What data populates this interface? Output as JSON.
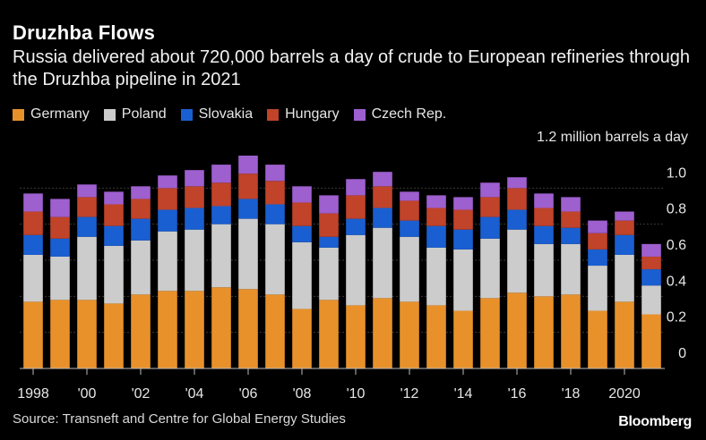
{
  "header": {
    "title": "Druzhba Flows",
    "subtitle": "Russia delivered about 720,000 barrels a day of crude to European refineries through the Druzhba pipeline in 2021"
  },
  "legend": [
    {
      "label": "Germany",
      "color": "#e8912b"
    },
    {
      "label": "Poland",
      "color": "#cccccc"
    },
    {
      "label": "Slovakia",
      "color": "#1a5fd1"
    },
    {
      "label": "Hungary",
      "color": "#c0432a"
    },
    {
      "label": "Czech Rep.",
      "color": "#9e5fcf"
    }
  ],
  "footer": {
    "source": "Source: Transneft and Centre for Global Energy Studies",
    "brand": "Bloomberg"
  },
  "chart_data": {
    "type": "bar",
    "stacked": true,
    "title": "Druzhba Flows",
    "ylabel": "1.2 million barrels a day",
    "ylim": [
      0,
      1.2
    ],
    "yticks": [
      "0",
      "0.2",
      "0.4",
      "0.6",
      "0.8",
      "1.0"
    ],
    "ytick_values": [
      0,
      0.2,
      0.4,
      0.6,
      0.8,
      1.0
    ],
    "categories": [
      "1998",
      "1999",
      "2000",
      "2001",
      "2002",
      "2003",
      "2004",
      "2005",
      "2006",
      "2007",
      "2008",
      "2009",
      "2010",
      "2011",
      "2012",
      "2013",
      "2014",
      "2015",
      "2016",
      "2017",
      "2018",
      "2019",
      "2020",
      "2021"
    ],
    "xtick_labels": {
      "1998": "1998",
      "2000": "'00",
      "2002": "'02",
      "2004": "'04",
      "2006": "'06",
      "2008": "'08",
      "2010": "'10",
      "2012": "'12",
      "2014": "'14",
      "2016": "'16",
      "2018": "'18",
      "2020": "2020"
    },
    "series": [
      {
        "name": "Germany",
        "color": "#e8912b",
        "values": [
          0.37,
          0.38,
          0.38,
          0.36,
          0.41,
          0.43,
          0.43,
          0.45,
          0.44,
          0.41,
          0.33,
          0.38,
          0.35,
          0.39,
          0.37,
          0.35,
          0.32,
          0.39,
          0.42,
          0.4,
          0.41,
          0.32,
          0.37,
          0.3
        ]
      },
      {
        "name": "Poland",
        "color": "#cccccc",
        "values": [
          0.26,
          0.24,
          0.35,
          0.32,
          0.3,
          0.33,
          0.34,
          0.35,
          0.39,
          0.39,
          0.37,
          0.29,
          0.39,
          0.39,
          0.36,
          0.32,
          0.34,
          0.33,
          0.35,
          0.29,
          0.28,
          0.25,
          0.26,
          0.16
        ]
      },
      {
        "name": "Slovakia",
        "color": "#1a5fd1",
        "values": [
          0.11,
          0.1,
          0.11,
          0.11,
          0.12,
          0.12,
          0.12,
          0.1,
          0.11,
          0.11,
          0.09,
          0.06,
          0.09,
          0.11,
          0.09,
          0.12,
          0.11,
          0.12,
          0.11,
          0.1,
          0.09,
          0.09,
          0.11,
          0.09
        ]
      },
      {
        "name": "Hungary",
        "color": "#c0432a",
        "values": [
          0.13,
          0.12,
          0.11,
          0.12,
          0.11,
          0.12,
          0.12,
          0.13,
          0.14,
          0.13,
          0.13,
          0.13,
          0.13,
          0.12,
          0.11,
          0.1,
          0.11,
          0.11,
          0.12,
          0.1,
          0.09,
          0.09,
          0.08,
          0.07
        ]
      },
      {
        "name": "Czech Rep.",
        "color": "#9e5fcf",
        "values": [
          0.1,
          0.1,
          0.07,
          0.07,
          0.07,
          0.07,
          0.09,
          0.1,
          0.1,
          0.09,
          0.09,
          0.1,
          0.09,
          0.08,
          0.05,
          0.07,
          0.07,
          0.08,
          0.06,
          0.08,
          0.08,
          0.07,
          0.05,
          0.07
        ]
      }
    ]
  }
}
